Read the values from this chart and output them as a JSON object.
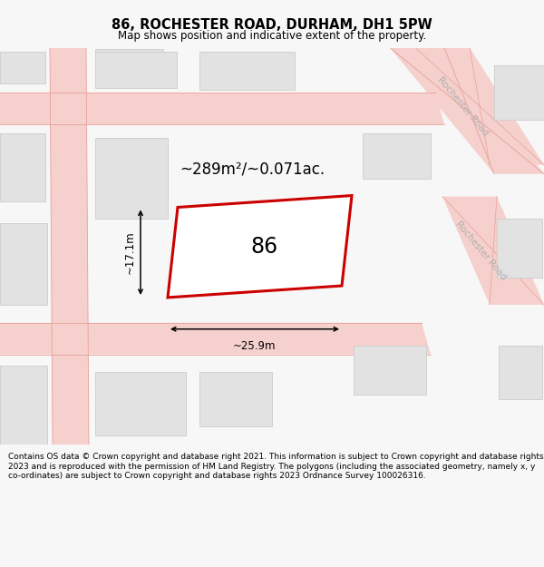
{
  "title": "86, ROCHESTER ROAD, DURHAM, DH1 5PW",
  "subtitle": "Map shows position and indicative extent of the property.",
  "footer": "Contains OS data © Crown copyright and database right 2021. This information is subject to Crown copyright and database rights 2023 and is reproduced with the permission of HM Land Registry. The polygons (including the associated geometry, namely x, y co-ordinates) are subject to Crown copyright and database rights 2023 Ordnance Survey 100026316.",
  "bg_color": "#f7f7f7",
  "map_bg": "#efefef",
  "road_fill": "#f5d0cc",
  "road_line": "#e8a09a",
  "building_fill": "#e2e2e2",
  "building_edge": "#d0d0d0",
  "plot_fill": "#ffffff",
  "plot_edge": "#cc0000",
  "plot_lw": 2.2,
  "area_label": "~289m²/~0.071ac.",
  "number_label": "86",
  "dim_width_label": "~25.9m",
  "dim_height_label": "~17.1m",
  "road_label": "Rochester Road",
  "title_fontsize": 10.5,
  "subtitle_fontsize": 8.5,
  "footer_fontsize": 6.5,
  "area_fontsize": 12,
  "number_fontsize": 17,
  "dim_fontsize": 8.5,
  "road_fontsize": 7.5
}
